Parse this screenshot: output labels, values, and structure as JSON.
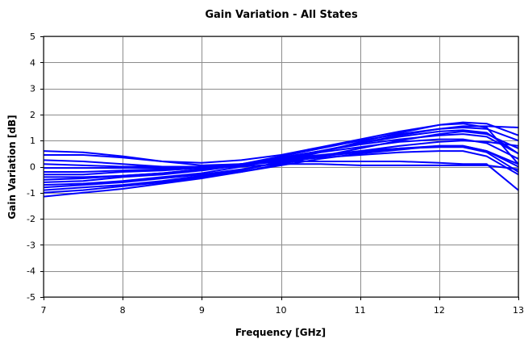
{
  "chart_data": {
    "type": "line",
    "title": "Gain Variation - All States",
    "xlabel": "Frequency [GHz]",
    "ylabel": "Gain Variation [dB]",
    "xlim": [
      7,
      13
    ],
    "ylim": [
      -5,
      5
    ],
    "xticks": [
      7,
      8,
      9,
      10,
      11,
      12,
      13
    ],
    "yticks": [
      -5,
      -4,
      -3,
      -2,
      -1,
      0,
      1,
      2,
      3,
      4,
      5
    ],
    "grid": true,
    "line_color": "#0000ff",
    "x": [
      7,
      7.5,
      8,
      8.5,
      9,
      9.5,
      10,
      10.5,
      11,
      11.5,
      12,
      12.3,
      12.6,
      13
    ],
    "series": [
      {
        "values": [
          0.6,
          0.55,
          0.4,
          0.2,
          0.05,
          0.1,
          0.2,
          0.2,
          0.2,
          0.2,
          0.15,
          0.1,
          0.1,
          -0.9
        ]
      },
      {
        "values": [
          0.45,
          0.45,
          0.35,
          0.2,
          0.15,
          0.25,
          0.45,
          0.75,
          1.05,
          1.35,
          1.6,
          1.65,
          1.5,
          0.1
        ]
      },
      {
        "values": [
          0.25,
          0.2,
          0.1,
          0.0,
          -0.05,
          0.0,
          0.1,
          0.1,
          0.05,
          0.05,
          0.05,
          0.05,
          0.05,
          -0.1
        ]
      },
      {
        "values": [
          0.1,
          0.05,
          0.0,
          0.0,
          0.0,
          0.1,
          0.25,
          0.4,
          0.55,
          0.7,
          0.8,
          0.8,
          0.6,
          0.0
        ]
      },
      {
        "values": [
          -0.05,
          -0.05,
          -0.05,
          -0.05,
          -0.05,
          0.05,
          0.2,
          0.35,
          0.45,
          0.55,
          0.6,
          0.6,
          0.4,
          -0.3
        ]
      },
      {
        "values": [
          -0.2,
          -0.2,
          -0.15,
          -0.1,
          -0.05,
          0.1,
          0.35,
          0.6,
          0.9,
          1.15,
          1.35,
          1.4,
          1.3,
          0.5
        ]
      },
      {
        "values": [
          -0.3,
          -0.3,
          -0.2,
          -0.15,
          -0.05,
          0.1,
          0.3,
          0.45,
          0.6,
          0.7,
          0.75,
          0.75,
          0.55,
          -0.2
        ]
      },
      {
        "values": [
          -0.4,
          -0.4,
          -0.35,
          -0.25,
          -0.1,
          0.1,
          0.35,
          0.6,
          0.85,
          1.05,
          1.2,
          1.25,
          1.15,
          0.5
        ]
      },
      {
        "values": [
          -0.5,
          -0.45,
          -0.35,
          -0.25,
          -0.1,
          0.1,
          0.4,
          0.7,
          1.0,
          1.25,
          1.45,
          1.5,
          1.45,
          1.0
        ]
      },
      {
        "values": [
          -0.6,
          -0.55,
          -0.4,
          -0.3,
          -0.15,
          0.05,
          0.3,
          0.55,
          0.75,
          0.95,
          1.05,
          1.05,
          0.9,
          0.3
        ]
      },
      {
        "values": [
          -0.7,
          -0.65,
          -0.55,
          -0.4,
          -0.25,
          0.0,
          0.3,
          0.6,
          0.9,
          1.2,
          1.45,
          1.55,
          1.55,
          1.5
        ]
      },
      {
        "values": [
          -0.8,
          -0.7,
          -0.6,
          -0.45,
          -0.3,
          -0.1,
          0.15,
          0.4,
          0.6,
          0.8,
          0.95,
          1.0,
          0.95,
          0.8
        ]
      },
      {
        "values": [
          -0.9,
          -0.8,
          -0.7,
          -0.55,
          -0.35,
          -0.15,
          0.2,
          0.55,
          0.95,
          1.3,
          1.6,
          1.7,
          1.65,
          1.2
        ]
      },
      {
        "values": [
          -1.0,
          -0.9,
          -0.75,
          -0.6,
          -0.4,
          -0.2,
          0.05,
          0.3,
          0.5,
          0.65,
          0.8,
          0.8,
          0.6,
          0.1
        ]
      },
      {
        "values": [
          -1.15,
          -1.0,
          -0.85,
          -0.65,
          -0.45,
          -0.2,
          0.1,
          0.4,
          0.7,
          1.0,
          1.25,
          1.35,
          1.25,
          0.7
        ]
      }
    ]
  }
}
